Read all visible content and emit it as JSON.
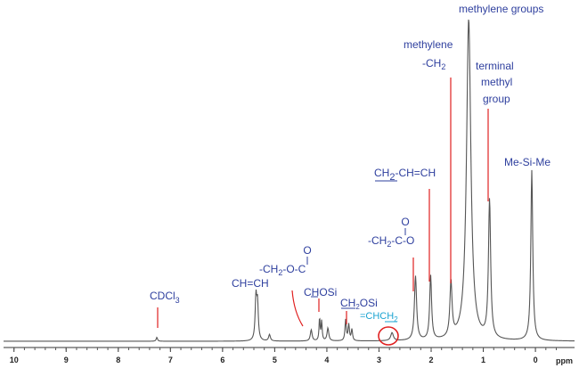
{
  "chart_data": {
    "type": "line",
    "title": "",
    "xlabel": "ppm",
    "ylabel": "",
    "xlim": [
      10.2,
      -0.75
    ],
    "x_reversed": true,
    "ticks": [
      10,
      9,
      8,
      7,
      6,
      5,
      4,
      3,
      2,
      1,
      0
    ],
    "tick_labels": [
      "10",
      "9",
      "8",
      "7",
      "6",
      "5",
      "4",
      "3",
      "2",
      "1",
      "0"
    ],
    "peaks": [
      {
        "ppm": 7.26,
        "height": 0.012,
        "width": 0.015
      },
      {
        "ppm": 5.36,
        "height": 0.13,
        "width": 0.018
      },
      {
        "ppm": 5.33,
        "height": 0.11,
        "width": 0.018
      },
      {
        "ppm": 5.1,
        "height": 0.02,
        "width": 0.02
      },
      {
        "ppm": 4.3,
        "height": 0.035,
        "width": 0.02
      },
      {
        "ppm": 4.14,
        "height": 0.07,
        "width": 0.012
      },
      {
        "ppm": 4.1,
        "height": 0.06,
        "width": 0.012
      },
      {
        "ppm": 3.98,
        "height": 0.04,
        "width": 0.02
      },
      {
        "ppm": 3.64,
        "height": 0.065,
        "width": 0.015
      },
      {
        "ppm": 3.58,
        "height": 0.05,
        "width": 0.015
      },
      {
        "ppm": 3.52,
        "height": 0.035,
        "width": 0.015
      },
      {
        "ppm": 2.75,
        "height": 0.025,
        "width": 0.03
      },
      {
        "ppm": 2.3,
        "height": 0.2,
        "width": 0.025
      },
      {
        "ppm": 2.01,
        "height": 0.2,
        "width": 0.022
      },
      {
        "ppm": 1.62,
        "height": 0.17,
        "width": 0.025
      },
      {
        "ppm": 1.28,
        "height": 1.0,
        "width": 0.05
      },
      {
        "ppm": 0.88,
        "height": 0.43,
        "width": 0.025
      },
      {
        "ppm": 0.07,
        "height": 0.53,
        "width": 0.022
      }
    ],
    "annotations": [
      {
        "text": "CDCl3",
        "sub": "3",
        "base": "CDCl",
        "ppm": 7.26
      },
      {
        "text": "CH=CH",
        "ppm": 5.35
      },
      {
        "text": "-CH2-O-C",
        "ppm": 4.3
      },
      {
        "text": "CHOSi",
        "ppm": 4.12
      },
      {
        "text": "CH2OSi",
        "ppm": 3.6
      },
      {
        "text": "=CHCH2",
        "ppm": 2.75
      },
      {
        "text": "-CH2-C-O",
        "ppm": 2.3
      },
      {
        "text": "CH2-CH=CH",
        "ppm": 2.01
      },
      {
        "text": "methylene -CH2",
        "ppm": 1.62
      },
      {
        "text": "methylene groups",
        "ppm": 1.28
      },
      {
        "text": "terminal methyl group",
        "ppm": 0.88
      },
      {
        "text": "Me-Si-Me",
        "ppm": 0.07
      }
    ]
  },
  "labels": {
    "cdcl3_base": "CDCl",
    "cdcl3_sub": "3",
    "chch": "CH=CH",
    "ester_prefix": "-CH",
    "ester_sub": "2",
    "ester_suffix": "-O-C",
    "ester_o": "O",
    "chosi": "CHOSi",
    "ch2osi_a": "CH",
    "ch2osi_sub": "2",
    "ch2osi_b": "OSi",
    "allyl_a": "=CHCH",
    "allyl_sub": "2",
    "acyl_prefix": "-CH",
    "acyl_sub": "2",
    "acyl_suffix": "-C-O",
    "acyl_o": "O",
    "ch2chch_a": "CH",
    "ch2chch_sub": "2",
    "ch2chch_b": "-CH=CH",
    "methylene": "methylene",
    "methylene_ch": "-CH",
    "methylene_sub": "2",
    "methylene_groups": "methylene groups",
    "terminal": "terminal",
    "methyl": "methyl",
    "group": "group",
    "mesime": "Me-Si-Me",
    "axis_unit": "ppm"
  },
  "colors": {
    "spectrum": "#555555",
    "label": "#2e3f9e",
    "label_accent": "#1aa3d1",
    "marker": "#e02020"
  }
}
